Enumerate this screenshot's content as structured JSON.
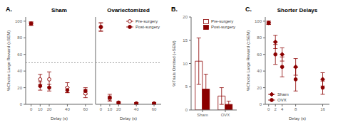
{
  "chart_data": [
    {
      "type": "scatter",
      "title": "Sham",
      "annotations": [
        "A."
      ],
      "x_label": "Delay (s)",
      "y_label": "%Choice Large Reward (±SEM)",
      "x": [
        0,
        10,
        20,
        40,
        60
      ],
      "xlim": [
        -6,
        68
      ],
      "xticks": [
        0,
        10,
        20,
        40,
        60
      ],
      "ylim": [
        0,
        105
      ],
      "yticks": [
        0,
        20,
        40,
        60,
        80,
        100
      ],
      "grid": false,
      "reference_line": 50,
      "series": [
        {
          "name": "Pre-surgery",
          "color": "#8B0000",
          "marker": "open_circle",
          "values": [
            97,
            30,
            30,
            20,
            13
          ],
          "errors": [
            2,
            6,
            9,
            6,
            5
          ]
        },
        {
          "name": "Post-surgery",
          "color": "#8B0000",
          "marker": "circle",
          "values": [
            97,
            22,
            20,
            17,
            16
          ],
          "errors": [
            2,
            5,
            4,
            3,
            4
          ]
        }
      ]
    },
    {
      "type": "scatter",
      "title": "Ovariectomized",
      "x_label": "Delay (s)",
      "x": [
        0,
        10,
        20,
        40,
        60
      ],
      "xlim": [
        -6,
        68
      ],
      "xticks": [
        0,
        10,
        20,
        40,
        60
      ],
      "ylim": [
        0,
        105
      ],
      "yticks": [
        0,
        20,
        40,
        60,
        80,
        100
      ],
      "grid": false,
      "reference_line": 50,
      "tick_labels": "x",
      "legend": "upper right",
      "series": [
        {
          "name": "Pre-surgery",
          "color": "#8B0000",
          "marker": "open_circle",
          "values": [
            93,
            7,
            2,
            1,
            1
          ],
          "errors": [
            5,
            3,
            1,
            1,
            1
          ]
        },
        {
          "name": "Post-surgery",
          "color": "#8B0000",
          "marker": "circle",
          "values": [
            93,
            8,
            2,
            1,
            1
          ],
          "errors": [
            5,
            4,
            1,
            1,
            1
          ]
        }
      ]
    },
    {
      "type": "bar",
      "annotations": [
        "B."
      ],
      "y_label": "%Trials Omitted (+SEM)",
      "categories": [
        "Sham",
        "OVX"
      ],
      "ylim": [
        0,
        20
      ],
      "yticks": [
        0,
        5,
        10,
        15,
        20
      ],
      "grid": false,
      "legend": "upper right",
      "series": [
        {
          "name": "Pre-surgery",
          "color": "#8B0000",
          "marker": "open",
          "values": [
            10.5,
            3.0
          ],
          "errors": [
            5.0,
            1.8
          ]
        },
        {
          "name": "Post-surgery",
          "color": "#8B0000",
          "marker": "filled",
          "values": [
            4.5,
            1.2
          ],
          "errors": [
            3.2,
            0.7
          ]
        }
      ]
    },
    {
      "type": "scatter",
      "title": "Shorter Delays",
      "annotations": [
        "C."
      ],
      "x_label": "Delay (s)",
      "y_label": "%Choice Large Reward (±SEM)",
      "x": [
        0,
        2,
        4,
        8,
        16
      ],
      "xlim": [
        -1,
        18
      ],
      "xticks": [
        0,
        2,
        4,
        8,
        16
      ],
      "ylim": [
        0,
        105
      ],
      "yticks": [
        0,
        20,
        40,
        60,
        80,
        100
      ],
      "grid": false,
      "legend": "lower left",
      "series": [
        {
          "name": "Sham",
          "color": "#8B0000",
          "marker": "diamond",
          "values": [
            98,
            75,
            60,
            45,
            30
          ],
          "errors": [
            2,
            8,
            8,
            10,
            8
          ]
        },
        {
          "name": "OVX",
          "color": "#8B0000",
          "marker": "circle",
          "values": [
            98,
            60,
            45,
            30,
            20
          ],
          "errors": [
            2,
            12,
            12,
            14,
            8
          ]
        }
      ]
    }
  ]
}
